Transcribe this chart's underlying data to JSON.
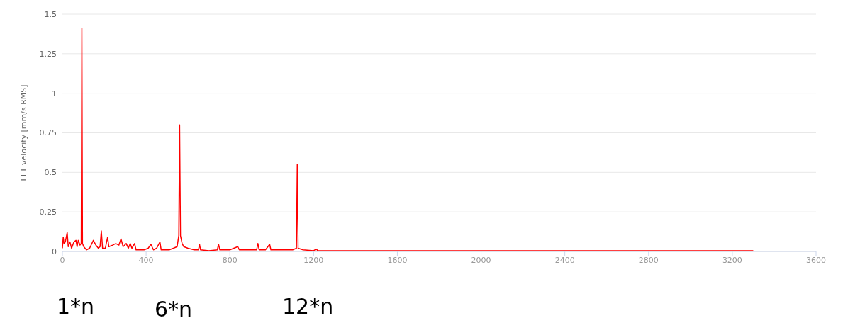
{
  "chart_data": {
    "type": "line",
    "ylabel": "FFT velocity [mm/s RMS]",
    "x": [
      0,
      4,
      8,
      14,
      23,
      28,
      36,
      44,
      55,
      65,
      70,
      76,
      84,
      90,
      93,
      96,
      102,
      115,
      130,
      148,
      160,
      172,
      180,
      186,
      192,
      205,
      216,
      222,
      240,
      255,
      270,
      280,
      290,
      305,
      315,
      324,
      332,
      345,
      352,
      370,
      390,
      410,
      423,
      435,
      450,
      466,
      472,
      490,
      510,
      530,
      548,
      556,
      560,
      564,
      572,
      580,
      600,
      630,
      650,
      655,
      660,
      700,
      740,
      746,
      752,
      800,
      838,
      845,
      900,
      928,
      934,
      940,
      970,
      990,
      996,
      1050,
      1100,
      1118,
      1122,
      1126,
      1150,
      1200,
      1213,
      1220,
      1300,
      1500,
      1800,
      2200,
      2600,
      3000,
      3300
    ],
    "series": [
      {
        "color": "#ff0000",
        "values": [
          0.02,
          0.09,
          0.05,
          0.06,
          0.12,
          0.03,
          0.06,
          0.02,
          0.06,
          0.07,
          0.03,
          0.07,
          0.04,
          0.05,
          1.41,
          0.05,
          0.03,
          0.01,
          0.02,
          0.07,
          0.04,
          0.02,
          0.03,
          0.13,
          0.02,
          0.02,
          0.09,
          0.03,
          0.04,
          0.05,
          0.04,
          0.08,
          0.03,
          0.05,
          0.02,
          0.05,
          0.02,
          0.05,
          0.01,
          0.01,
          0.01,
          0.02,
          0.045,
          0.01,
          0.02,
          0.06,
          0.01,
          0.01,
          0.01,
          0.02,
          0.03,
          0.1,
          0.8,
          0.1,
          0.05,
          0.03,
          0.02,
          0.01,
          0.01,
          0.045,
          0.01,
          0.005,
          0.01,
          0.045,
          0.01,
          0.01,
          0.03,
          0.01,
          0.01,
          0.01,
          0.05,
          0.01,
          0.01,
          0.045,
          0.01,
          0.01,
          0.01,
          0.02,
          0.55,
          0.02,
          0.01,
          0.005,
          0.015,
          0.005,
          0.005,
          0.005,
          0.005,
          0.005,
          0.005,
          0.005,
          0.005
        ]
      }
    ],
    "xlim": [
      0,
      3600
    ],
    "xticks": [
      0,
      400,
      800,
      1200,
      1600,
      2000,
      2400,
      2800,
      3200,
      3600
    ],
    "ylim": [
      0,
      1.5
    ],
    "yticks": [
      0,
      0.25,
      0.5,
      0.75,
      1,
      1.25,
      1.5
    ],
    "grid": "y",
    "marker": "none",
    "line_style": "solid",
    "annotations": [
      "1*n",
      "6*n",
      "12*n"
    ]
  }
}
